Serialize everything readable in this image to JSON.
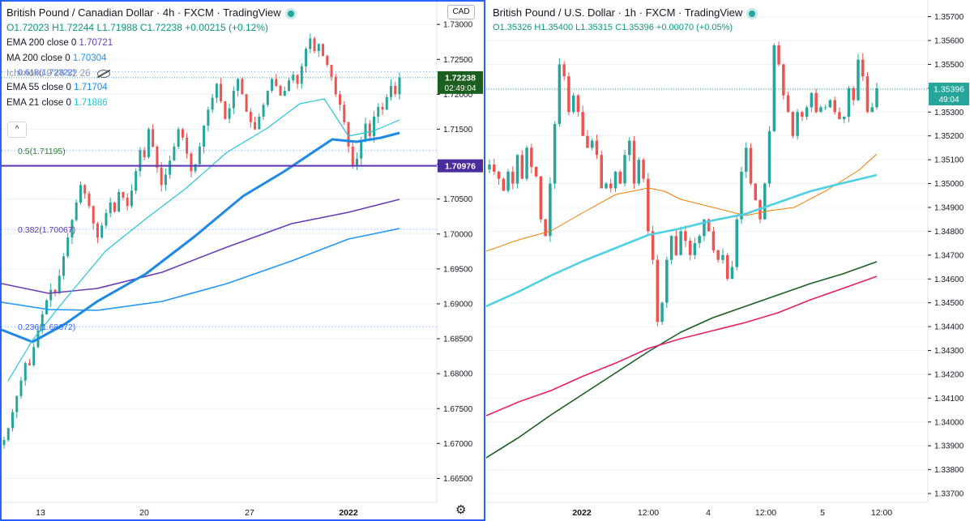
{
  "chart_data": [
    {
      "type": "candlestick",
      "title": "British Pound / Canadian Dollar · 4h · FXCM · TradingView",
      "ohlc": {
        "open": "O1.72023",
        "high": "H1.72244",
        "low": "L1.71988",
        "close": "C1.72238",
        "change": "+0.00215 (+0.12%)"
      },
      "currency_button": "CAD",
      "indicators": [
        {
          "label": "EMA 200 close 0",
          "value": "1.70721",
          "color": "#6a3db8"
        },
        {
          "label": "MA 200 close 0",
          "value": "1.70304",
          "color": "#2196f3"
        },
        {
          "label": "Ichimoku 9 26 52 26",
          "value": "",
          "color": "#787b86"
        },
        {
          "label": "EMA 55 close 0",
          "value": "1.71704",
          "color": "#1e88e5"
        },
        {
          "label": "EMA 21 close 0",
          "value": "1.71886",
          "color": "#26c6da"
        }
      ],
      "fib_levels": [
        {
          "label": "0.618(1.72322)",
          "value": 1.72322
        },
        {
          "label": "0.5(1.71195)",
          "value": 1.71195
        },
        {
          "label": "0.382(1.70067)",
          "value": 1.70067
        },
        {
          "label": "0.236(1.68672)",
          "value": 1.68672
        }
      ],
      "horizontal_line": {
        "value": 1.70976,
        "label": "1.70976",
        "color": "#5c35b8"
      },
      "last_price": {
        "value": 1.72238,
        "label": "1.72238",
        "countdown": "02:49:04",
        "color": "#26a69a"
      },
      "y_ticks": [
        "1.73000",
        "1.72500",
        "1.72000",
        "1.71500",
        "1.71000",
        "1.70500",
        "1.70000",
        "1.69500",
        "1.69000",
        "1.68500",
        "1.68000",
        "1.67500",
        "1.67000",
        "1.66500"
      ],
      "ylim": [
        1.6625,
        1.7335
      ],
      "x_ticks": [
        "13",
        "20",
        "27",
        "2022"
      ],
      "candles_close": [
        1.6705,
        1.6722,
        1.6745,
        1.6768,
        1.679,
        1.6815,
        1.6812,
        1.6838,
        1.6862,
        1.6885,
        1.6905,
        1.692,
        1.6915,
        1.694,
        1.6968,
        1.6995,
        1.702,
        1.7045,
        1.707,
        1.7058,
        1.704,
        1.7015,
        1.6995,
        1.7012,
        1.703,
        1.7045,
        1.7032,
        1.706,
        1.7052,
        1.704,
        1.7062,
        1.709,
        1.712,
        1.711,
        1.715,
        1.7125,
        1.7095,
        1.707,
        1.7085,
        1.7105,
        1.7125,
        1.715,
        1.7138,
        1.7115,
        1.709,
        1.71,
        1.7125,
        1.7155,
        1.7178,
        1.7195,
        1.7215,
        1.719,
        1.7165,
        1.718,
        1.7205,
        1.7222,
        1.72,
        1.7175,
        1.716,
        1.715,
        1.7168,
        1.7185,
        1.7205,
        1.7222,
        1.7212,
        1.7198,
        1.7205,
        1.722,
        1.7228,
        1.7215,
        1.724,
        1.7265,
        1.728,
        1.7262,
        1.7272,
        1.7255,
        1.7242,
        1.7225,
        1.72,
        1.7185,
        1.716,
        1.7125,
        1.7098,
        1.7108,
        1.7135,
        1.7158,
        1.714,
        1.7168,
        1.7182,
        1.7178,
        1.7196,
        1.7212,
        1.72,
        1.7224
      ]
    },
    {
      "type": "candlestick",
      "title": "British Pound / U.S. Dollar · 1h · FXCM · TradingView",
      "ohlc": {
        "open": "O1.35326",
        "high": "H1.35400",
        "low": "L1.35315",
        "close": "C1.35396",
        "change": "+0.00070 (+0.05%)"
      },
      "last_price": {
        "value": 1.35396,
        "label": "1.35396",
        "countdown": "49:04",
        "color": "#26a69a"
      },
      "y_ticks": [
        "1.35700",
        "1.35600",
        "1.35500",
        "1.35400",
        "1.35300",
        "1.35200",
        "1.35100",
        "1.35000",
        "1.34900",
        "1.34800",
        "1.34700",
        "1.34600",
        "1.34500",
        "1.34400",
        "1.34300",
        "1.34200",
        "1.34100",
        "1.34000",
        "1.33900",
        "1.33800",
        "1.33700"
      ],
      "ylim": [
        1.3369,
        1.3577
      ],
      "x_ticks": [
        "2022",
        "12:00",
        "4",
        "12:00",
        "5",
        "12:00"
      ],
      "moving_averages": [
        {
          "color": "#f57c00"
        },
        {
          "color": "#4dd0e1"
        },
        {
          "color": "#1b5e20"
        },
        {
          "color": "#e91e63"
        }
      ],
      "candles_close": [
        1.3508,
        1.3505,
        1.3502,
        1.3497,
        1.3505,
        1.35,
        1.3512,
        1.3502,
        1.3515,
        1.3507,
        1.3503,
        1.3485,
        1.3478,
        1.35,
        1.3525,
        1.355,
        1.3545,
        1.353,
        1.3537,
        1.353,
        1.352,
        1.3515,
        1.3518,
        1.3512,
        1.3498,
        1.35,
        1.3498,
        1.3505,
        1.35,
        1.3512,
        1.3518,
        1.35,
        1.351,
        1.3502,
        1.348,
        1.3468,
        1.3442,
        1.345,
        1.3468,
        1.3478,
        1.347,
        1.348,
        1.3476,
        1.347,
        1.3475,
        1.3478,
        1.3485,
        1.348,
        1.3472,
        1.3468,
        1.347,
        1.346,
        1.3465,
        1.3485,
        1.3505,
        1.3515,
        1.35,
        1.3493,
        1.3485,
        1.35,
        1.3522,
        1.3558,
        1.355,
        1.3537,
        1.353,
        1.352,
        1.353,
        1.3528,
        1.3532,
        1.3538,
        1.353,
        1.3532,
        1.3532,
        1.3535,
        1.353,
        1.3527,
        1.3528,
        1.354,
        1.3535,
        1.3552,
        1.3545,
        1.353,
        1.3532,
        1.354
      ]
    }
  ]
}
